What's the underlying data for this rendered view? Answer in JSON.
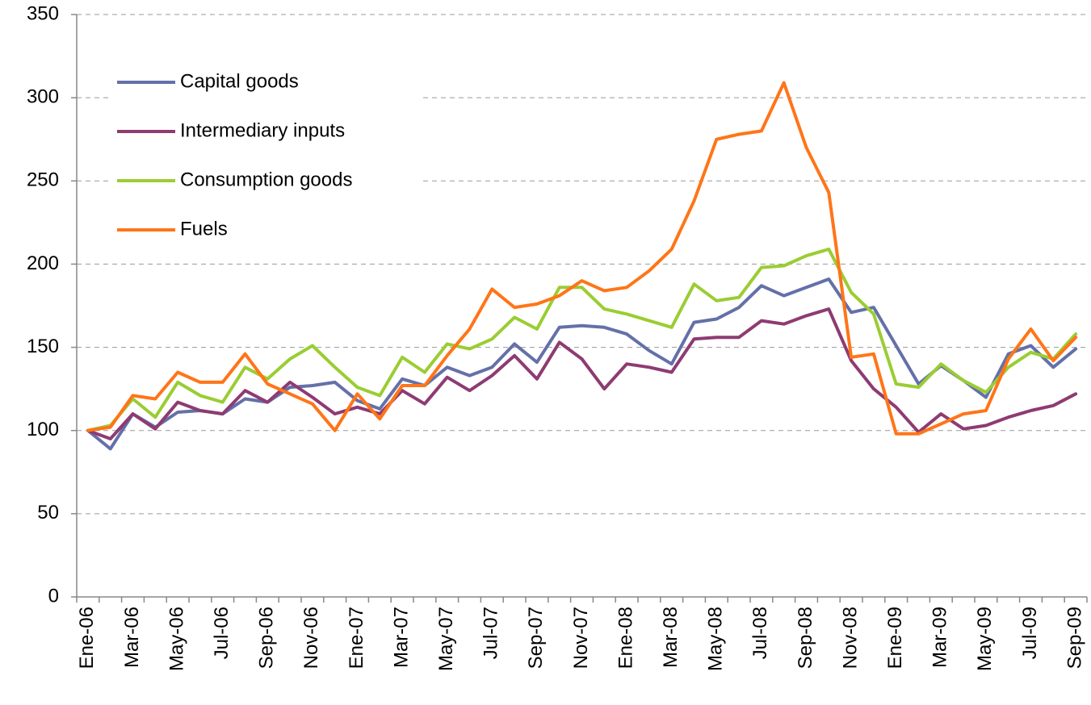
{
  "chart_data": {
    "type": "line",
    "categories": [
      "Ene-06",
      null,
      "Mar-06",
      null,
      "May-06",
      null,
      "Jul-06",
      null,
      "Sep-06",
      null,
      "Nov-06",
      null,
      "Ene-07",
      null,
      "Mar-07",
      null,
      "May-07",
      null,
      "Jul-07",
      null,
      "Sep-07",
      null,
      "Nov-07",
      null,
      "Ene-08",
      null,
      "Mar-08",
      null,
      "May-08",
      null,
      "Jul-08",
      null,
      "Sep-08",
      null,
      "Nov-08",
      null,
      "Ene-09",
      null,
      "Mar-09",
      null,
      "May-09",
      null,
      "Jul-09",
      null,
      "Sep-09"
    ],
    "series": [
      {
        "name": "Capital goods",
        "color": "#6470a8",
        "values": [
          100,
          89,
          110,
          102,
          111,
          112,
          110,
          119,
          117,
          126,
          127,
          129,
          118,
          113,
          131,
          127,
          138,
          133,
          138,
          152,
          141,
          162,
          163,
          162,
          158,
          148,
          140,
          165,
          167,
          174,
          187,
          181,
          186,
          191,
          171,
          174,
          151,
          128,
          139,
          130,
          120,
          146,
          151,
          138,
          149
        ]
      },
      {
        "name": "Intermediary inputs",
        "color": "#8e3b72",
        "values": [
          100,
          95,
          110,
          101,
          117,
          112,
          110,
          124,
          117,
          129,
          120,
          110,
          114,
          110,
          124,
          116,
          132,
          124,
          133,
          145,
          131,
          153,
          143,
          125,
          140,
          138,
          135,
          155,
          156,
          156,
          166,
          164,
          169,
          173,
          142,
          125,
          114,
          99,
          110,
          101,
          103,
          108,
          112,
          115,
          122
        ]
      },
      {
        "name": "Consumption goods",
        "color": "#9acd32",
        "values": [
          100,
          103,
          119,
          108,
          129,
          121,
          117,
          138,
          131,
          143,
          151,
          138,
          126,
          121,
          144,
          135,
          152,
          149,
          155,
          168,
          161,
          186,
          186,
          173,
          170,
          166,
          162,
          188,
          178,
          180,
          198,
          199,
          205,
          209,
          183,
          170,
          128,
          126,
          140,
          130,
          123,
          138,
          147,
          143,
          158
        ]
      },
      {
        "name": "Fuels",
        "color": "#ff7518",
        "values": [
          100,
          102,
          121,
          119,
          135,
          129,
          129,
          146,
          128,
          122,
          116,
          100,
          122,
          107,
          127,
          127,
          145,
          161,
          185,
          174,
          176,
          181,
          190,
          184,
          186,
          196,
          209,
          238,
          275,
          278,
          280,
          309,
          270,
          243,
          144,
          146,
          98,
          98,
          104,
          110,
          112,
          143,
          161,
          142,
          156
        ]
      }
    ],
    "ylim": [
      0,
      350
    ],
    "yticks": [
      0,
      50,
      100,
      150,
      200,
      250,
      300,
      350
    ],
    "grid": true,
    "legend": "upper left"
  }
}
